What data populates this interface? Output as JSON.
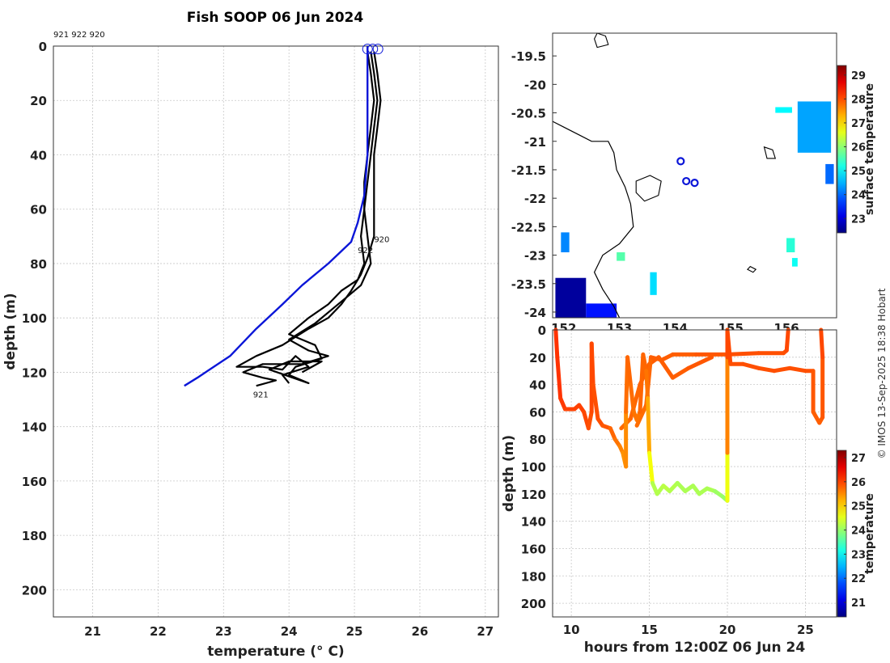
{
  "page_title": "Fish SOOP 06 Jun 2024",
  "profile_ids_label": "921 922 920",
  "credit": "© IMOS 13-Sep-2025 18:38 Hobart",
  "colors": {
    "profile_line": "#000000",
    "mean_line": "#0b16d8",
    "marker": "#0b16d8"
  },
  "chart_data": [
    {
      "id": "profile",
      "type": "line",
      "title": "Fish SOOP 06 Jun 2024",
      "xlabel": "temperature (° C)",
      "ylabel": "depth (m)",
      "xlim": [
        20.4,
        27.2
      ],
      "ylim": [
        0,
        210
      ],
      "xticks": [
        21,
        22,
        23,
        24,
        25,
        26,
        27
      ],
      "yticks": [
        0,
        20,
        40,
        60,
        80,
        100,
        120,
        140,
        160,
        180,
        200
      ],
      "grid": true,
      "profile_labels": [
        {
          "text": "922",
          "x": 25.05,
          "y": 75
        },
        {
          "text": "920",
          "x": 25.3,
          "y": 71
        },
        {
          "text": "921",
          "x": 23.45,
          "y": 128
        }
      ],
      "series": [
        {
          "name": "921",
          "color": "#000000",
          "points": [
            [
              25.2,
              2
            ],
            [
              25.25,
              10
            ],
            [
              25.3,
              20
            ],
            [
              25.25,
              30
            ],
            [
              25.2,
              40
            ],
            [
              25.15,
              50
            ],
            [
              25.15,
              60
            ],
            [
              25.2,
              70
            ],
            [
              25.25,
              80
            ],
            [
              25.1,
              88
            ],
            [
              24.9,
              92
            ],
            [
              24.7,
              96
            ],
            [
              24.4,
              102
            ],
            [
              24.0,
              108
            ],
            [
              24.3,
              112
            ],
            [
              24.6,
              114
            ],
            [
              24.2,
              117
            ],
            [
              23.6,
              117
            ],
            [
              23.3,
              120
            ],
            [
              23.6,
              122
            ],
            [
              23.8,
              123
            ],
            [
              23.5,
              125
            ]
          ]
        },
        {
          "name": "922",
          "color": "#000000",
          "points": [
            [
              25.25,
              2
            ],
            [
              25.3,
              10
            ],
            [
              25.35,
              20
            ],
            [
              25.3,
              30
            ],
            [
              25.25,
              40
            ],
            [
              25.2,
              50
            ],
            [
              25.15,
              60
            ],
            [
              25.1,
              70
            ],
            [
              25.15,
              80
            ],
            [
              25.05,
              86
            ],
            [
              24.8,
              90
            ],
            [
              24.6,
              95
            ],
            [
              24.3,
              100
            ],
            [
              24.0,
              106
            ],
            [
              24.4,
              110
            ],
            [
              24.5,
              115
            ],
            [
              24.1,
              118
            ],
            [
              24.0,
              121
            ],
            [
              24.3,
              124
            ],
            [
              23.7,
              119
            ],
            [
              24.0,
              116
            ],
            [
              24.5,
              116
            ],
            [
              24.2,
              120
            ]
          ]
        },
        {
          "name": "920",
          "color": "#000000",
          "points": [
            [
              25.3,
              2
            ],
            [
              25.35,
              10
            ],
            [
              25.4,
              20
            ],
            [
              25.35,
              30
            ],
            [
              25.3,
              40
            ],
            [
              25.3,
              50
            ],
            [
              25.3,
              60
            ],
            [
              25.3,
              70
            ],
            [
              25.2,
              78
            ],
            [
              25.1,
              84
            ],
            [
              24.95,
              90
            ],
            [
              24.8,
              95
            ],
            [
              24.6,
              100
            ],
            [
              24.3,
              104
            ],
            [
              23.9,
              110
            ],
            [
              23.5,
              114
            ],
            [
              23.2,
              118
            ],
            [
              23.6,
              118
            ],
            [
              23.9,
              119
            ],
            [
              24.1,
              114
            ],
            [
              24.3,
              118
            ],
            [
              23.9,
              121
            ],
            [
              24.0,
              124
            ]
          ]
        },
        {
          "name": "mean",
          "color": "#0b16d8",
          "points": [
            [
              25.2,
              0
            ],
            [
              25.2,
              20
            ],
            [
              25.2,
              40
            ],
            [
              25.15,
              55
            ],
            [
              25.05,
              65
            ],
            [
              24.95,
              72
            ],
            [
              24.6,
              80
            ],
            [
              24.2,
              88
            ],
            [
              23.9,
              95
            ],
            [
              23.5,
              104
            ],
            [
              23.1,
              114
            ],
            [
              22.6,
              122
            ],
            [
              22.4,
              125
            ]
          ]
        }
      ],
      "start_markers": [
        [
          25.2,
          0.5
        ],
        [
          25.28,
          0.5
        ],
        [
          25.36,
          0.5
        ]
      ]
    },
    {
      "id": "map",
      "type": "scatter",
      "xlabel": "",
      "ylabel": "",
      "xlim": [
        151.8,
        156.9
      ],
      "ylim": [
        -24.1,
        -19.1
      ],
      "xticks": [
        152,
        153,
        154,
        155,
        156
      ],
      "xtick_labels": [
        "152",
        "153",
        "154",
        "155",
        "156"
      ],
      "yticks": [
        -19.5,
        -20,
        -20.5,
        -21,
        -21.5,
        -22,
        -22.5,
        -23,
        -23.5,
        -24
      ],
      "ytick_labels": [
        "-19.5",
        "-20",
        "-20.5",
        "-21",
        "-21.5",
        "-22",
        "-22.5",
        "-23",
        "-23.5",
        "-24"
      ],
      "colorbar": {
        "label": "surface temperature",
        "min": 22.4,
        "max": 29.4,
        "ticks": [
          23,
          24,
          25,
          26,
          27,
          28,
          29
        ]
      },
      "markers": [
        [
          154.1,
          -21.35
        ],
        [
          154.2,
          -21.7
        ],
        [
          154.35,
          -21.73
        ]
      ],
      "coastline": [
        [
          151.8,
          -20.65
        ],
        [
          152.0,
          -20.75
        ],
        [
          152.3,
          -20.9
        ],
        [
          152.5,
          -21.0
        ],
        [
          152.8,
          -21.0
        ],
        [
          152.9,
          -21.2
        ],
        [
          152.95,
          -21.5
        ],
        [
          153.1,
          -21.8
        ],
        [
          153.2,
          -22.1
        ],
        [
          153.25,
          -22.5
        ],
        [
          153.0,
          -22.8
        ],
        [
          152.7,
          -23.0
        ],
        [
          152.55,
          -23.3
        ],
        [
          152.7,
          -23.6
        ],
        [
          152.9,
          -23.9
        ],
        [
          153.0,
          -24.1
        ]
      ],
      "islands": [
        [
          [
            152.6,
            -19.1
          ],
          [
            152.75,
            -19.15
          ],
          [
            152.8,
            -19.3
          ],
          [
            152.6,
            -19.35
          ],
          [
            152.55,
            -19.2
          ]
        ],
        [
          [
            153.3,
            -21.7
          ],
          [
            153.55,
            -21.6
          ],
          [
            153.75,
            -21.7
          ],
          [
            153.7,
            -21.95
          ],
          [
            153.45,
            -22.05
          ],
          [
            153.3,
            -21.9
          ]
        ],
        [
          [
            155.6,
            -21.1
          ],
          [
            155.75,
            -21.15
          ],
          [
            155.8,
            -21.3
          ],
          [
            155.65,
            -21.3
          ]
        ],
        [
          [
            155.35,
            -23.2
          ],
          [
            155.45,
            -23.25
          ],
          [
            155.4,
            -23.3
          ],
          [
            155.3,
            -23.25
          ]
        ]
      ],
      "sst_patches": [
        {
          "lon": 151.85,
          "lat": -23.4,
          "w": 0.55,
          "h": 0.7,
          "temp": 22.6
        },
        {
          "lon": 152.4,
          "lat": -23.85,
          "w": 0.55,
          "h": 0.25,
          "temp": 23.4
        },
        {
          "lon": 151.95,
          "lat": -22.6,
          "w": 0.15,
          "h": 0.35,
          "temp": 24.2
        },
        {
          "lon": 152.95,
          "lat": -22.95,
          "w": 0.15,
          "h": 0.15,
          "temp": 25.6
        },
        {
          "lon": 153.55,
          "lat": -23.3,
          "w": 0.12,
          "h": 0.4,
          "temp": 24.8
        },
        {
          "lon": 155.8,
          "lat": -20.4,
          "w": 0.3,
          "h": 0.1,
          "temp": 25.0
        },
        {
          "lon": 156.2,
          "lat": -20.3,
          "w": 0.6,
          "h": 0.9,
          "temp": 24.4
        },
        {
          "lon": 156.7,
          "lat": -21.4,
          "w": 0.15,
          "h": 0.35,
          "temp": 24.0
        },
        {
          "lon": 156.0,
          "lat": -22.7,
          "w": 0.15,
          "h": 0.25,
          "temp": 25.3
        },
        {
          "lon": 156.1,
          "lat": -23.05,
          "w": 0.1,
          "h": 0.15,
          "temp": 25.1
        }
      ]
    },
    {
      "id": "timeseries",
      "type": "scatter",
      "xlabel": "hours from 12:00Z 06 Jun 24",
      "ylabel": "depth (m)",
      "xlim": [
        8.8,
        27.0
      ],
      "ylim": [
        0,
        210
      ],
      "xticks": [
        10,
        15,
        20,
        25
      ],
      "yticks": [
        0,
        20,
        40,
        60,
        80,
        100,
        120,
        140,
        160,
        180,
        200
      ],
      "colorbar": {
        "label": "temperature",
        "min": 20.4,
        "max": 27.3,
        "ticks": [
          21,
          22,
          23,
          24,
          25,
          26,
          27
        ]
      },
      "track": [
        [
          9.0,
          0,
          26.1
        ],
        [
          9.1,
          20,
          26.1
        ],
        [
          9.3,
          50,
          26.1
        ],
        [
          9.6,
          58,
          26.0
        ],
        [
          10.2,
          58,
          26.0
        ],
        [
          10.5,
          55,
          26.0
        ],
        [
          10.8,
          60,
          26.0
        ],
        [
          11.1,
          72,
          25.9
        ],
        [
          11.3,
          60,
          25.9
        ],
        [
          11.3,
          10,
          26.0
        ],
        [
          11.4,
          40,
          25.9
        ],
        [
          11.7,
          65,
          25.9
        ],
        [
          12.0,
          70,
          25.9
        ],
        [
          12.5,
          72,
          25.8
        ],
        [
          12.8,
          80,
          25.7
        ],
        [
          13.1,
          85,
          25.6
        ],
        [
          13.3,
          90,
          25.5
        ],
        [
          13.5,
          100,
          25.4
        ],
        [
          13.5,
          60,
          25.6
        ],
        [
          13.6,
          20,
          25.8
        ],
        [
          13.8,
          40,
          25.7
        ],
        [
          14.0,
          60,
          25.7
        ],
        [
          14.2,
          66,
          25.6
        ],
        [
          14.4,
          60,
          25.7
        ],
        [
          14.6,
          18,
          25.8
        ],
        [
          14.8,
          30,
          25.7
        ],
        [
          14.9,
          50,
          25.6
        ],
        [
          15.0,
          90,
          25.0
        ],
        [
          15.2,
          112,
          24.3
        ],
        [
          15.5,
          120,
          24.1
        ],
        [
          15.9,
          114,
          24.3
        ],
        [
          16.3,
          118,
          24.2
        ],
        [
          16.8,
          112,
          24.2
        ],
        [
          17.3,
          118,
          24.1
        ],
        [
          17.8,
          114,
          24.2
        ],
        [
          18.2,
          120,
          24.1
        ],
        [
          18.7,
          116,
          24.2
        ],
        [
          19.2,
          118,
          24.1
        ],
        [
          19.7,
          122,
          24.0
        ],
        [
          20.0,
          125,
          24.0
        ],
        [
          20.0,
          90,
          25.2
        ],
        [
          20.0,
          20,
          25.9
        ],
        [
          20.0,
          0,
          26.0
        ],
        [
          20.2,
          25,
          25.9
        ],
        [
          21.0,
          25,
          25.9
        ],
        [
          22.0,
          28,
          25.9
        ],
        [
          23.0,
          30,
          25.9
        ],
        [
          24.0,
          28,
          25.9
        ],
        [
          25.0,
          30,
          25.9
        ],
        [
          25.5,
          30,
          25.9
        ],
        [
          25.5,
          60,
          25.8
        ],
        [
          25.9,
          68,
          25.8
        ],
        [
          26.1,
          64,
          25.8
        ],
        [
          26.1,
          20,
          25.9
        ],
        [
          26.0,
          0,
          26.0
        ]
      ],
      "track2": [
        [
          14.2,
          70,
          25.7
        ],
        [
          14.8,
          55,
          25.7
        ],
        [
          15.1,
          20,
          25.8
        ],
        [
          15.8,
          22,
          25.8
        ],
        [
          16.5,
          18,
          25.8
        ],
        [
          18.0,
          18,
          25.8
        ],
        [
          20.0,
          18,
          25.9
        ],
        [
          22.0,
          17,
          25.9
        ],
        [
          23.6,
          17,
          25.9
        ],
        [
          23.8,
          15,
          25.9
        ],
        [
          23.9,
          0,
          26.0
        ]
      ],
      "track3": [
        [
          13.2,
          72,
          25.7
        ],
        [
          13.8,
          65,
          25.7
        ],
        [
          14.4,
          40,
          25.8
        ],
        [
          15.0,
          25,
          25.8
        ],
        [
          15.6,
          20,
          25.8
        ],
        [
          16.5,
          35,
          25.8
        ],
        [
          17.5,
          28,
          25.8
        ],
        [
          19.0,
          20,
          25.9
        ]
      ]
    }
  ]
}
